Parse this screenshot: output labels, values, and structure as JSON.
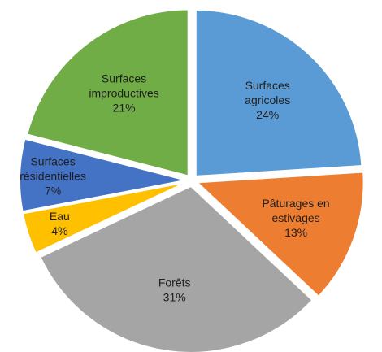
{
  "chart_data": {
    "type": "pie",
    "slices": [
      {
        "label_lines": [
          "Surfaces",
          "agricoles",
          "24%"
        ],
        "value": 24,
        "color": "#5b9bd5"
      },
      {
        "label_lines": [
          "Pâturages en",
          "estivages",
          "13%"
        ],
        "value": 13,
        "color": "#ed7d31"
      },
      {
        "label_lines": [
          "Forêts",
          "31%"
        ],
        "value": 31,
        "color": "#a5a5a5"
      },
      {
        "label_lines": [
          "Eau",
          "4%"
        ],
        "value": 4,
        "color": "#ffc000"
      },
      {
        "label_lines": [
          "Surfaces",
          "résidentielles",
          "7%"
        ],
        "value": 7,
        "color": "#4472c4"
      },
      {
        "label_lines": [
          "Surfaces",
          "improductives",
          "21%"
        ],
        "value": 21,
        "color": "#70ad47"
      }
    ],
    "start_angle_deg": 0,
    "direction": "clockwise",
    "exploded": true
  }
}
